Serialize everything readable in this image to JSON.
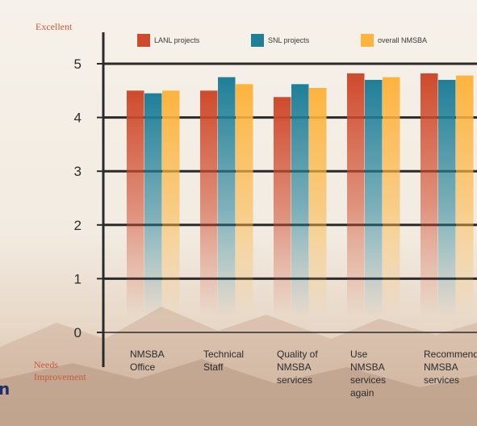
{
  "left_edge_text": "n",
  "chart_data": {
    "type": "bar",
    "title": "",
    "xlabel": "",
    "ylabel": "",
    "ylim": [
      0,
      5
    ],
    "yticks": [
      0,
      1,
      2,
      3,
      4,
      5
    ],
    "rating_labels": {
      "top": "Excellent",
      "bottom": [
        "Needs",
        "Improvement"
      ]
    },
    "categories": [
      [
        "NMSBA",
        "Office"
      ],
      [
        "Technical",
        "Staff"
      ],
      [
        "Quality of",
        "NMSBA",
        "services"
      ],
      [
        "Use",
        "NMSBA",
        "services",
        "again"
      ],
      [
        "Recommend",
        "NMSBA",
        "services"
      ]
    ],
    "series": [
      {
        "name": "LANL projects",
        "color": "#cf4a2c",
        "values": [
          4.5,
          4.5,
          4.38,
          4.82,
          4.82
        ]
      },
      {
        "name": "SNL projects",
        "color": "#1f7f98",
        "values": [
          4.45,
          4.75,
          4.62,
          4.7,
          4.7
        ]
      },
      {
        "name": "overall NMSBA",
        "color": "#fdb43e",
        "values": [
          4.5,
          4.62,
          4.55,
          4.75,
          4.78
        ]
      }
    ],
    "grid": true,
    "legend_position": "top"
  }
}
